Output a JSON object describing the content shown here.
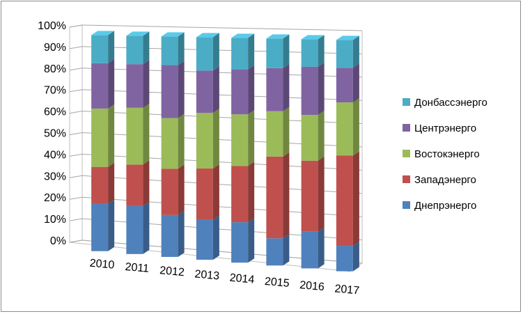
{
  "chart_data": {
    "type": "bar",
    "stacked": true,
    "three_d": true,
    "categories": [
      "2010",
      "2011",
      "2012",
      "2013",
      "2014",
      "2015",
      "2016",
      "2017"
    ],
    "y_ticks": [
      "0%",
      "10%",
      "20%",
      "30%",
      "40%",
      "50%",
      "60%",
      "70%",
      "80%",
      "90%",
      "100%"
    ],
    "ylim": [
      0,
      100
    ],
    "grid": true,
    "legend_position": "right",
    "series": [
      {
        "name": "Днепрэнерго",
        "color": "#4f81bd",
        "values": [
          22,
          22,
          19,
          18,
          18,
          12,
          16,
          11
        ]
      },
      {
        "name": "Западэнерго",
        "color": "#c0504d",
        "values": [
          17,
          19,
          21,
          23,
          25,
          36,
          31,
          39
        ]
      },
      {
        "name": "Востокэнерго",
        "color": "#9bbb59",
        "values": [
          27,
          26,
          23,
          25,
          23,
          20,
          20,
          23
        ]
      },
      {
        "name": "Центрэнерго",
        "color": "#8064a2",
        "values": [
          21,
          20,
          24,
          19,
          20,
          19,
          21,
          15
        ]
      },
      {
        "name": "Донбассэнерго",
        "color": "#4bacc6",
        "values": [
          13,
          13,
          13,
          15,
          14,
          13,
          12,
          12
        ]
      }
    ]
  }
}
